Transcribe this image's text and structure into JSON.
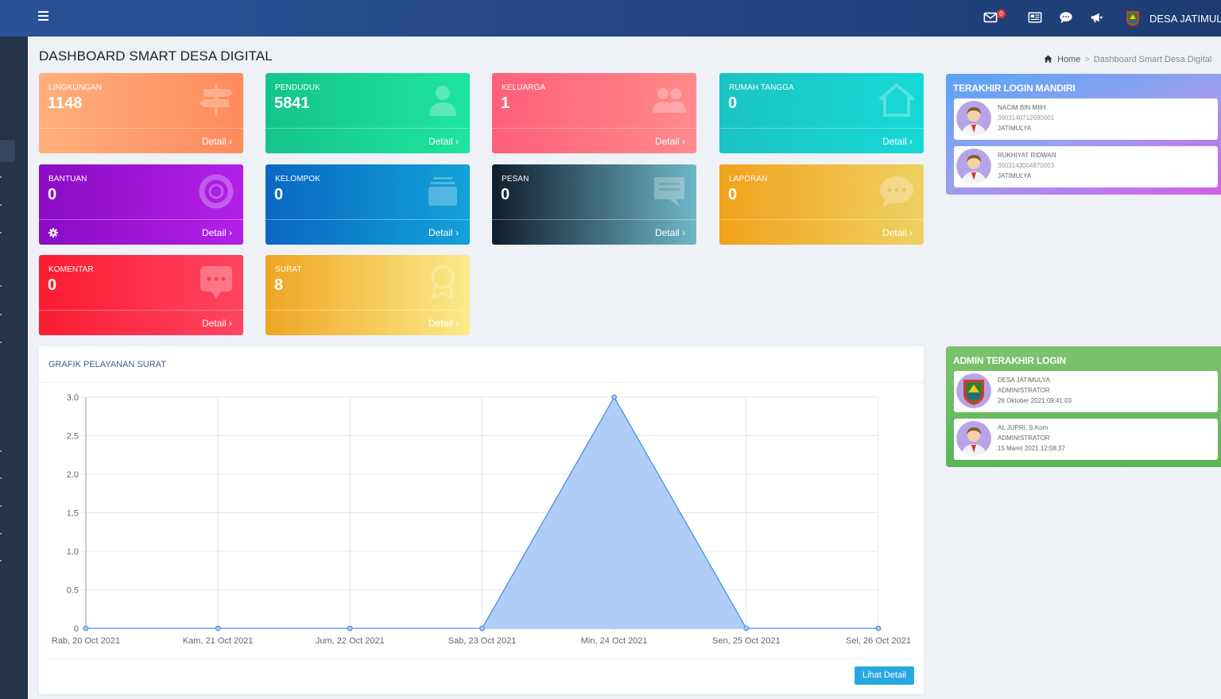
{
  "topbar": {
    "mail_badge": "0",
    "village_name": "DESA JATIMULYA"
  },
  "page": {
    "title": "DASHBOARD SMART DESA DIGITAL",
    "breadcrumb_home": "Home",
    "breadcrumb_current": "Dashboard Smart Desa Digital"
  },
  "cards": [
    {
      "label": "LINGKUNGAN",
      "value": "1148",
      "detail": "Detail",
      "icon": "signpost-icon",
      "color_from": "#ffb07a",
      "color_to": "#ff8a5c"
    },
    {
      "label": "PENDUDUK",
      "value": "5841",
      "detail": "Detail",
      "icon": "user-icon",
      "color_from": "#15c48a",
      "color_to": "#1ee5a0"
    },
    {
      "label": "KELUARGA",
      "value": "1",
      "detail": "Detail",
      "icon": "users-icon",
      "color_from": "#ff5f7a",
      "color_to": "#ff8a8a"
    },
    {
      "label": "RUMAH TANGGA",
      "value": "0",
      "detail": "Detail",
      "icon": "home-icon",
      "color_from": "#1bc3c4",
      "color_to": "#17d9d6"
    },
    {
      "label": "BANTUAN",
      "value": "0",
      "detail": "Detail",
      "icon": "life-ring-icon",
      "color_from": "#8a0cc3",
      "color_to": "#b320e8"
    },
    {
      "label": "KELOMPOK",
      "value": "0",
      "detail": "Detail",
      "icon": "layers-icon",
      "color_from": "#0a67c4",
      "color_to": "#12a2d8"
    },
    {
      "label": "PESAN",
      "value": "0",
      "detail": "Detail",
      "icon": "message-icon",
      "color_from": "#0f1d2e",
      "color_to": "#6fb7c7"
    },
    {
      "label": "LAPORAN",
      "value": "0",
      "detail": "Detail",
      "icon": "comment-dots-icon",
      "color_from": "#f0a21b",
      "color_to": "#efd163"
    },
    {
      "label": "KOMENTAR",
      "value": "0",
      "detail": "Detail",
      "icon": "comment-box-icon",
      "color_from": "#fb1c31",
      "color_to": "#ff4561"
    },
    {
      "label": "SURAT",
      "value": "8",
      "detail": "Detail",
      "icon": "award-icon",
      "color_from": "#efa523",
      "color_to": "#fbec8c"
    }
  ],
  "chart_panel": {
    "title": "GRAFIK PELAYANAN SURAT",
    "button": "Lihat Detail"
  },
  "chart_data": {
    "type": "area",
    "categories": [
      "Rab, 20 Oct 2021",
      "Kam, 21 Oct 2021",
      "Jum, 22 Oct 2021",
      "Sab, 23 Oct 2021",
      "Min, 24 Oct 2021",
      "Sen, 25 Oct 2021",
      "Sel, 26 Oct 2021"
    ],
    "values": [
      0,
      0,
      0,
      0,
      3,
      0,
      0
    ],
    "yticks": [
      "0",
      "0.5",
      "1.0",
      "1.5",
      "2.0",
      "2.5",
      "3.0"
    ],
    "ylim": [
      0,
      3
    ],
    "grid": true,
    "fill_color": "#abcaf7",
    "line_color": "#4d8fe6"
  },
  "login_mandiri": {
    "title": "TERAKHIR LOGIN MANDIRI",
    "items": [
      {
        "name": "NACIM BIN MIIH",
        "id": "3603140712690001",
        "place": "JATIMULYA"
      },
      {
        "name": "RUKHIYAT RIDWAN",
        "id": "3603143004870003",
        "place": "JATIMULYA"
      }
    ]
  },
  "admin_login": {
    "title": "ADMIN TERAKHIR LOGIN",
    "items": [
      {
        "name": "DESA JATIMULYA",
        "role": "ADMINISTRATOR",
        "time": "26 Oktober 2021 09:41:03"
      },
      {
        "name": "AL JUPRI, S.Kom",
        "role": "ADMINISTRATOR",
        "time": "15 Maret 2021 12:08:37"
      }
    ]
  }
}
